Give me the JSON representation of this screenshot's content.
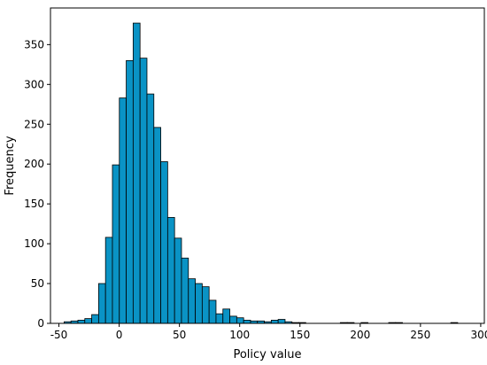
{
  "chart_data": {
    "type": "bar",
    "subtype": "histogram",
    "xlabel": "Policy value",
    "ylabel": "Frequency",
    "xlim": [
      -57,
      303
    ],
    "ylim": [
      0,
      396
    ],
    "x_ticks": [
      -50,
      0,
      50,
      100,
      150,
      200,
      250,
      300
    ],
    "y_ticks": [
      0,
      50,
      100,
      150,
      200,
      250,
      300,
      350
    ],
    "bin_width": 5.73,
    "bar_color": "#0A93C5",
    "edge_color": "#000000",
    "grid": false,
    "bins": [
      {
        "x0": -45.7,
        "count": 2
      },
      {
        "x0": -39.97,
        "count": 3
      },
      {
        "x0": -34.24,
        "count": 4
      },
      {
        "x0": -28.51,
        "count": 6
      },
      {
        "x0": -22.78,
        "count": 11
      },
      {
        "x0": -17.05,
        "count": 50
      },
      {
        "x0": -11.32,
        "count": 108
      },
      {
        "x0": -5.59,
        "count": 199
      },
      {
        "x0": 0.14,
        "count": 283
      },
      {
        "x0": 5.87,
        "count": 330
      },
      {
        "x0": 11.6,
        "count": 377
      },
      {
        "x0": 17.33,
        "count": 333
      },
      {
        "x0": 23.06,
        "count": 288
      },
      {
        "x0": 28.79,
        "count": 246
      },
      {
        "x0": 34.52,
        "count": 203
      },
      {
        "x0": 40.25,
        "count": 133
      },
      {
        "x0": 45.98,
        "count": 107
      },
      {
        "x0": 51.71,
        "count": 82
      },
      {
        "x0": 57.44,
        "count": 56
      },
      {
        "x0": 63.17,
        "count": 50
      },
      {
        "x0": 68.9,
        "count": 46
      },
      {
        "x0": 74.63,
        "count": 29
      },
      {
        "x0": 80.36,
        "count": 12
      },
      {
        "x0": 86.09,
        "count": 18
      },
      {
        "x0": 91.82,
        "count": 9
      },
      {
        "x0": 97.55,
        "count": 7
      },
      {
        "x0": 103.28,
        "count": 4
      },
      {
        "x0": 109.01,
        "count": 3
      },
      {
        "x0": 114.74,
        "count": 3
      },
      {
        "x0": 120.47,
        "count": 2
      },
      {
        "x0": 126.2,
        "count": 4
      },
      {
        "x0": 131.93,
        "count": 5
      },
      {
        "x0": 137.66,
        "count": 2
      },
      {
        "x0": 143.39,
        "count": 1
      },
      {
        "x0": 149.12,
        "count": 1
      },
      {
        "x0": 183.5,
        "count": 1
      },
      {
        "x0": 189.23,
        "count": 1
      },
      {
        "x0": 200.69,
        "count": 1
      },
      {
        "x0": 223.61,
        "count": 1
      },
      {
        "x0": 229.34,
        "count": 1
      },
      {
        "x0": 275.18,
        "count": 1
      }
    ]
  }
}
